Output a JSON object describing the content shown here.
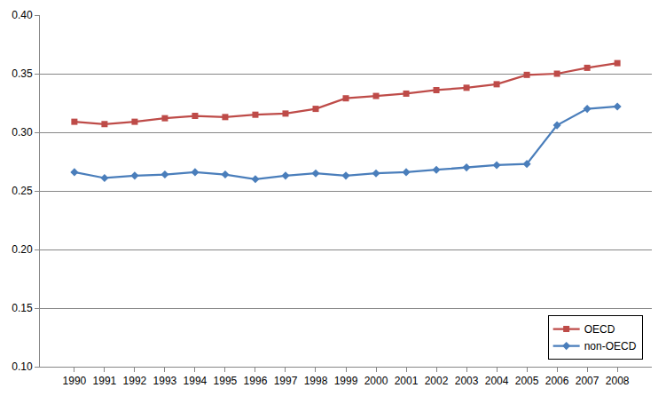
{
  "chart_data": {
    "type": "line",
    "categories": [
      "1990",
      "1991",
      "1992",
      "1993",
      "1994",
      "1995",
      "1996",
      "1997",
      "1998",
      "1999",
      "2000",
      "2001",
      "2002",
      "2003",
      "2004",
      "2005",
      "2006",
      "2007",
      "2008"
    ],
    "series": [
      {
        "name": "OECD",
        "color": "#be4b48",
        "marker": "square",
        "line_style": "solid",
        "values": [
          0.309,
          0.307,
          0.309,
          0.312,
          0.314,
          0.313,
          0.315,
          0.316,
          0.32,
          0.329,
          0.331,
          0.333,
          0.336,
          0.338,
          0.341,
          0.349,
          0.35,
          0.355,
          0.359
        ]
      },
      {
        "name": "non-OECD",
        "color": "#4a7ebb",
        "marker": "diamond",
        "line_style": "solid",
        "values": [
          0.266,
          0.261,
          0.263,
          0.264,
          0.266,
          0.264,
          0.26,
          0.263,
          0.265,
          0.263,
          0.265,
          0.266,
          0.268,
          0.27,
          0.272,
          0.273,
          0.306,
          0.32,
          0.322
        ]
      }
    ],
    "ylim": [
      0.1,
      0.4
    ],
    "yticks": [
      {
        "value": 0.1,
        "label": "0.10"
      },
      {
        "value": 0.15,
        "label": "0.15"
      },
      {
        "value": 0.2,
        "label": "0.20"
      },
      {
        "value": 0.25,
        "label": "0.25"
      },
      {
        "value": 0.3,
        "label": "0.30"
      },
      {
        "value": 0.35,
        "label": "0.35"
      },
      {
        "value": 0.4,
        "label": "0.40"
      }
    ],
    "grid": true,
    "legend": "lower right"
  }
}
